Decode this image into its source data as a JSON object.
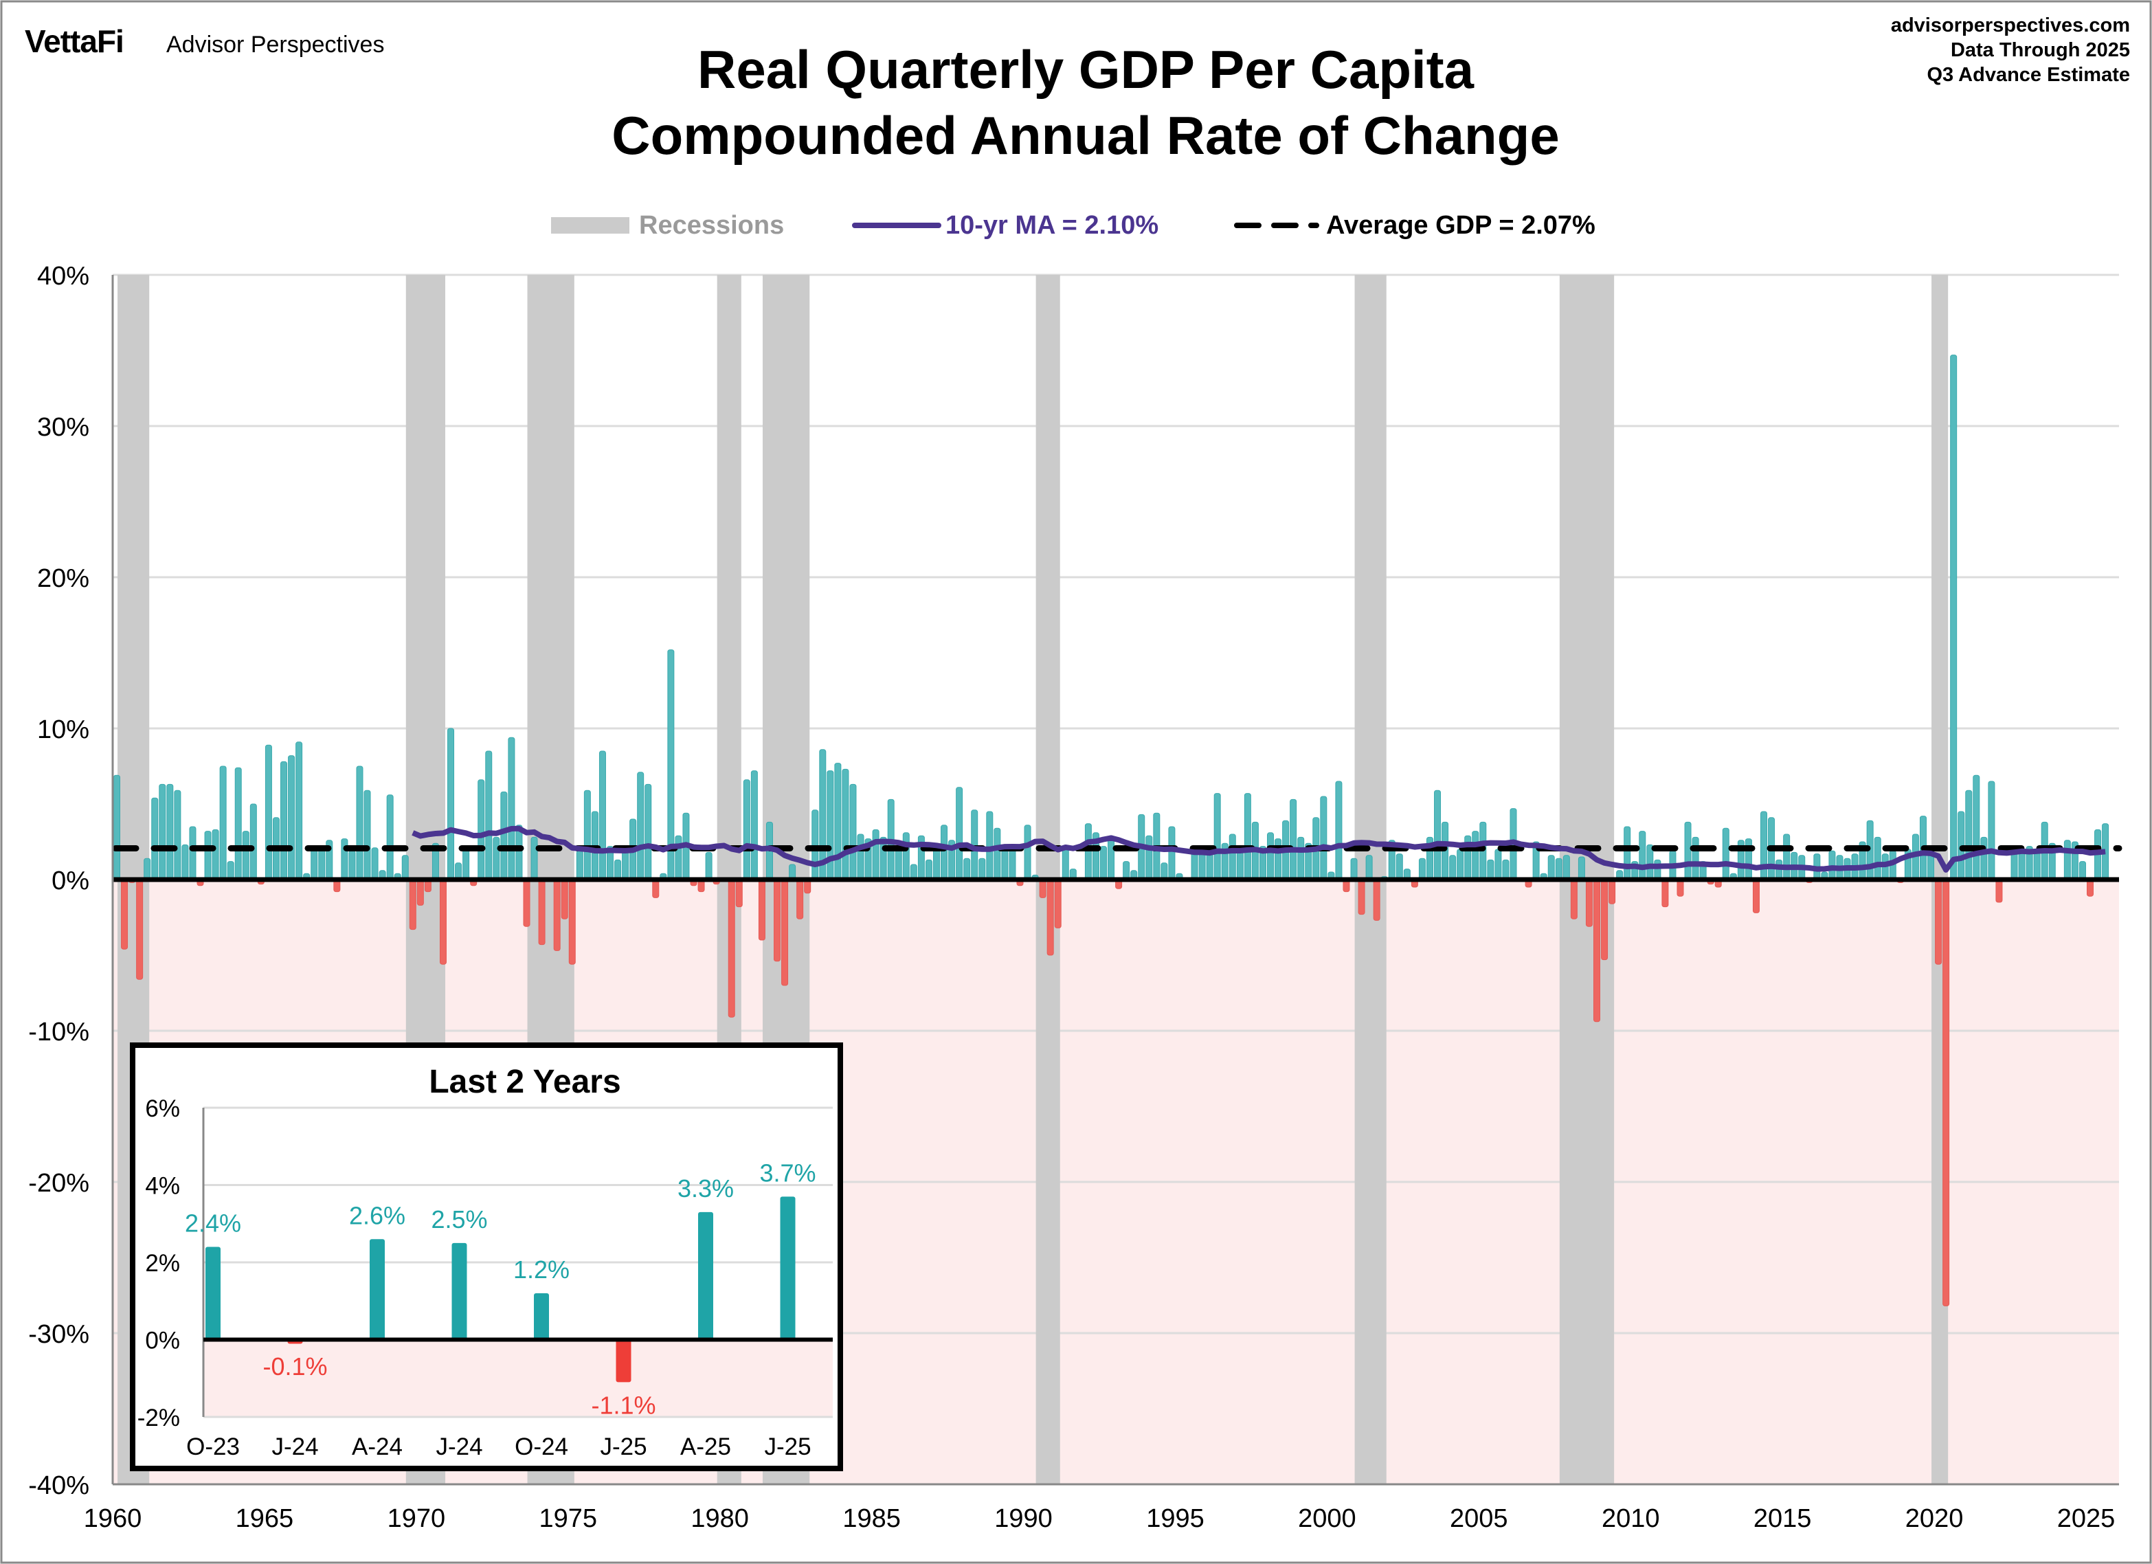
{
  "header": {
    "logo": "VettaFi",
    "brand": "Advisor Perspectives",
    "source_lines": [
      "advisorperspectives.com",
      "Data Through 2025",
      "Q3 Advance Estimate"
    ]
  },
  "colors": {
    "positive": "#55babd",
    "negative": "#ee6660",
    "recession": "#cbcbcb",
    "moving_average": "#4b3590",
    "average": "#000000",
    "negative_zone": "#fdecec",
    "inset_positive": "#1fa4a7",
    "inset_negative": "#ee3e38"
  },
  "chart_data": [
    {
      "type": "bar",
      "title": [
        "Real Quarterly GDP Per Capita",
        "Compounded Annual Rate of Change"
      ],
      "legend": {
        "placement": "top-center",
        "items": [
          {
            "label": "Recessions",
            "kind": "band"
          },
          {
            "label": "10-yr MA = 2.10%",
            "kind": "line"
          },
          {
            "label": "Average GDP = 2.07%",
            "kind": "dashed-line"
          }
        ]
      },
      "x_start": "1960Q1",
      "x_end": "2025Q3",
      "frequency": "quarterly",
      "xlim": [
        1960,
        2025.75
      ],
      "ylim": [
        -40,
        40
      ],
      "y_ticks": [
        "40%",
        "30%",
        "20%",
        "10%",
        "0%",
        "-10%",
        "-20%",
        "-30%",
        "-40%"
      ],
      "y_tick_values": [
        40,
        30,
        20,
        10,
        0,
        -10,
        -20,
        -30,
        -40
      ],
      "x_ticks": [
        "1960",
        "1965",
        "1970",
        "1975",
        "1980",
        "1985",
        "1990",
        "1995",
        "2000",
        "2005",
        "2010",
        "2015",
        "2020",
        "2025"
      ],
      "grid": true,
      "average_value": 2.07,
      "moving_average_window_years": 10,
      "recessions": [
        [
          "1960Q2",
          "1961Q1"
        ],
        [
          "1969Q4",
          "1970Q4"
        ],
        [
          "1973Q4",
          "1975Q1"
        ],
        [
          "1980Q1",
          "1980Q3"
        ],
        [
          "1981Q3",
          "1982Q4"
        ],
        [
          "1990Q3",
          "1991Q1"
        ],
        [
          "2001Q1",
          "2001Q4"
        ],
        [
          "2007Q4",
          "2009Q2"
        ],
        [
          "2020Q1",
          "2020Q2"
        ]
      ],
      "values": [
        6.9,
        -4.6,
        -0.2,
        -6.6,
        1.4,
        5.4,
        6.3,
        6.3,
        5.9,
        2.3,
        3.5,
        -0.4,
        3.2,
        3.3,
        7.5,
        1.2,
        7.4,
        3.2,
        5.0,
        -0.3,
        8.9,
        4.1,
        7.8,
        8.2,
        9.1,
        0.4,
        2.2,
        2.2,
        2.6,
        -0.8,
        2.7,
        1.9,
        7.5,
        5.9,
        2.1,
        0.6,
        5.6,
        0.4,
        1.6,
        -3.3,
        -1.7,
        -0.8,
        2.4,
        -5.6,
        10.0,
        1.1,
        2.2,
        -0.4,
        6.6,
        8.5,
        2.8,
        5.8,
        9.4,
        3.6,
        -3.1,
        2.8,
        -4.3,
        0.1,
        -4.7,
        -2.6,
        -5.6,
        1.9,
        5.9,
        4.5,
        8.5,
        2.2,
        1.3,
        1.9,
        4.0,
        7.1,
        6.3,
        -1.2,
        0.4,
        15.2,
        2.9,
        4.4,
        -0.4,
        -0.8,
        1.8,
        -0.3,
        0.1,
        -9.1,
        -1.8,
        6.6,
        7.2,
        -4.0,
        3.8,
        -5.4,
        -7.0,
        1.0,
        -2.6,
        -0.9,
        4.6,
        8.6,
        7.2,
        7.7,
        7.3,
        6.3,
        3.0,
        2.7,
        3.3,
        2.8,
        5.3,
        2.0,
        3.1,
        1.0,
        2.9,
        1.3,
        2.0,
        3.6,
        2.6,
        6.1,
        1.4,
        4.6,
        1.4,
        4.5,
        3.4,
        2.0,
        2.0,
        -0.4,
        3.6,
        0.3,
        -1.2,
        -5.0,
        -3.2,
        2.2,
        0.7,
        0.1,
        3.7,
        3.1,
        2.2,
        2.9,
        -0.6,
        1.2,
        0.6,
        4.3,
        2.9,
        4.4,
        1.1,
        3.5,
        0.4,
        0.1,
        2.2,
        1.8,
        1.8,
        5.7,
        2.4,
        3.0,
        1.9,
        5.7,
        3.8,
        2.2,
        3.1,
        2.7,
        3.9,
        5.3,
        2.8,
        2.4,
        4.1,
        5.5,
        0.5,
        6.5,
        -0.8,
        1.4,
        -2.3,
        1.6,
        -2.7,
        0.2,
        2.6,
        1.7,
        0.7,
        -0.5,
        1.4,
        2.8,
        5.9,
        3.8,
        1.6,
        2.0,
        2.9,
        3.2,
        3.8,
        1.3,
        2.0,
        1.3,
        4.7,
        0.1,
        -0.5,
        2.5,
        0.4,
        1.6,
        1.4,
        1.6,
        -2.6,
        1.5,
        -3.1,
        -9.4,
        -5.3,
        -1.6,
        0.6,
        3.5,
        1.2,
        3.2,
        2.3,
        1.3,
        -1.8,
        1.9,
        -1.1,
        3.8,
        2.8,
        1.2,
        -0.3,
        -0.5,
        3.4,
        0.4,
        2.6,
        2.7,
        -2.2,
        4.5,
        4.1,
        1.3,
        3.0,
        1.8,
        1.6,
        -0.2,
        1.7,
        0.5,
        1.9,
        1.6,
        1.4,
        1.7,
        2.5,
        3.9,
        2.8,
        1.7,
        1.9,
        -0.2,
        2.0,
        3.0,
        4.2,
        2.2,
        -5.6,
        -28.2,
        34.7,
        4.5,
        5.9,
        6.9,
        2.8,
        6.5,
        -1.5,
        0.1,
        2.0,
        1.9,
        2.2,
        1.8,
        3.8,
        2.4,
        -0.1,
        2.6,
        2.5,
        1.2,
        -1.1,
        3.3,
        3.7
      ]
    },
    {
      "type": "bar",
      "title": "Last 2 Years",
      "categories": [
        "O-23",
        "J-24",
        "A-24",
        "J-24",
        "O-24",
        "J-25",
        "A-25",
        "J-25"
      ],
      "values": [
        2.4,
        -0.1,
        2.6,
        2.5,
        1.2,
        -1.1,
        3.3,
        3.7
      ],
      "data_labels": [
        "2.4%",
        "-0.1%",
        "2.6%",
        "2.5%",
        "1.2%",
        "-1.1%",
        "3.3%",
        "3.7%"
      ],
      "ylim": [
        -2,
        6
      ],
      "y_ticks": [
        "6%",
        "4%",
        "2%",
        "0%",
        "-2%"
      ],
      "y_tick_values": [
        6,
        4,
        2,
        0,
        -2
      ],
      "grid": true
    }
  ]
}
